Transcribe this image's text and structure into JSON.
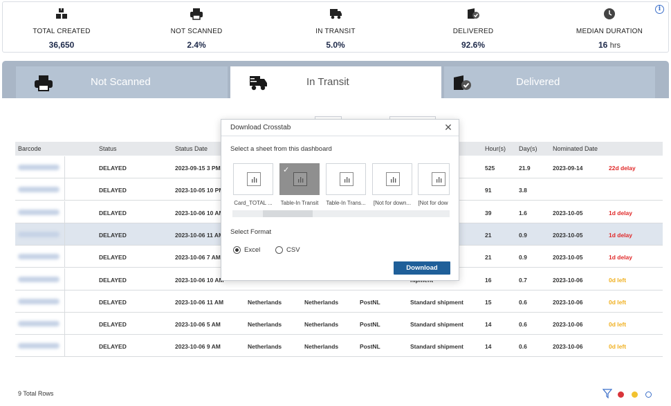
{
  "kpis": [
    {
      "label": "TOTAL CREATED",
      "value": "36,650",
      "unit": "",
      "icon": "boxes-icon"
    },
    {
      "label": "NOT SCANNED",
      "value": "2.4%",
      "unit": "",
      "icon": "printer-icon"
    },
    {
      "label": "IN TRANSIT",
      "value": "5.0%",
      "unit": "",
      "icon": "truck-icon"
    },
    {
      "label": "DELIVERED",
      "value": "92.6%",
      "unit": "",
      "icon": "delivered-package-icon"
    },
    {
      "label": "MEDIAN DURATION",
      "value": "16",
      "unit": "hrs",
      "icon": "clock-icon"
    }
  ],
  "tabs": [
    {
      "label": "Not Scanned",
      "icon": "printer-icon",
      "active": false
    },
    {
      "label": "In Transit",
      "icon": "truck-icon",
      "active": true
    },
    {
      "label": "Delivered",
      "icon": "delivered-package-icon",
      "active": false
    }
  ],
  "table": {
    "columns": [
      "Barcode",
      "Status",
      "Status Date",
      "Hour(s)",
      "Day(s)",
      "Nominated Date"
    ],
    "rows": [
      {
        "status": "DELAYED",
        "status_date": "2023-09-15 3 PM",
        "origin": "",
        "destination": "",
        "carrier": "",
        "service": "t",
        "hours": "525",
        "days": "21.9",
        "nominated": "2023-09-14",
        "delay": "22d delay",
        "delay_color": "red"
      },
      {
        "status": "DELAYED",
        "status_date": "2023-10-05 10 PM",
        "origin": "",
        "destination": "",
        "carrier": "",
        "service": "t",
        "hours": "91",
        "days": "3.8",
        "nominated": "",
        "delay": "",
        "delay_color": ""
      },
      {
        "status": "DELAYED",
        "status_date": "2023-10-06 10 AM",
        "origin": "",
        "destination": "",
        "carrier": "",
        "service": "",
        "hours": "39",
        "days": "1.6",
        "nominated": "2023-10-05",
        "delay": "1d delay",
        "delay_color": "red"
      },
      {
        "status": "DELAYED",
        "status_date": "2023-10-06 11 AM",
        "origin": "",
        "destination": "",
        "carrier": "",
        "service": "",
        "hours": "21",
        "days": "0.9",
        "nominated": "2023-10-05",
        "delay": "1d delay",
        "delay_color": "red"
      },
      {
        "status": "DELAYED",
        "status_date": "2023-10-06 7 AM",
        "origin": "",
        "destination": "",
        "carrier": "",
        "service": "t",
        "hours": "21",
        "days": "0.9",
        "nominated": "2023-10-05",
        "delay": "1d delay",
        "delay_color": "red"
      },
      {
        "status": "DELAYED",
        "status_date": "2023-10-06 10 AM",
        "origin": "",
        "destination": "",
        "carrier": "",
        "service": "hipment",
        "hours": "16",
        "days": "0.7",
        "nominated": "2023-10-06",
        "delay": "0d left",
        "delay_color": "amber"
      },
      {
        "status": "DELAYED",
        "status_date": "2023-10-06 11 AM",
        "origin": "Netherlands",
        "destination": "Netherlands",
        "carrier": "PostNL",
        "service": "Standard shipment",
        "hours": "15",
        "days": "0.6",
        "nominated": "2023-10-06",
        "delay": "0d left",
        "delay_color": "amber"
      },
      {
        "status": "DELAYED",
        "status_date": "2023-10-06 5 AM",
        "origin": "Netherlands",
        "destination": "Netherlands",
        "carrier": "PostNL",
        "service": "Standard shipment",
        "hours": "14",
        "days": "0.6",
        "nominated": "2023-10-06",
        "delay": "0d left",
        "delay_color": "amber"
      },
      {
        "status": "DELAYED",
        "status_date": "2023-10-06 9 AM",
        "origin": "Netherlands",
        "destination": "Netherlands",
        "carrier": "PostNL",
        "service": "Standard shipment",
        "hours": "14",
        "days": "0.6",
        "nominated": "2023-10-06",
        "delay": "0d left",
        "delay_color": "amber"
      }
    ],
    "total_rows": "9 Total Rows"
  },
  "modal": {
    "title": "Download Crosstab",
    "close": "✕",
    "subtitle": "Select a sheet from this dashboard",
    "sheets": [
      {
        "label": "Card_TOTAL ...",
        "selected": false
      },
      {
        "label": "Table-In Transit",
        "selected": true
      },
      {
        "label": "Table-In Trans...",
        "selected": false
      },
      {
        "label": "[Not for down...",
        "selected": false
      },
      {
        "label": "[Not for dow",
        "selected": false
      }
    ],
    "format_label": "Select Format",
    "formats": [
      {
        "label": "Excel",
        "checked": true
      },
      {
        "label": "CSV",
        "checked": false
      }
    ],
    "download_label": "Download"
  },
  "colors": {
    "red": "#e02828",
    "amber": "#f0b020",
    "dot_red": "#d9343a",
    "dot_yellow": "#f2c230",
    "dot_empty": "#ffffff",
    "accent": "#1f5f99"
  }
}
